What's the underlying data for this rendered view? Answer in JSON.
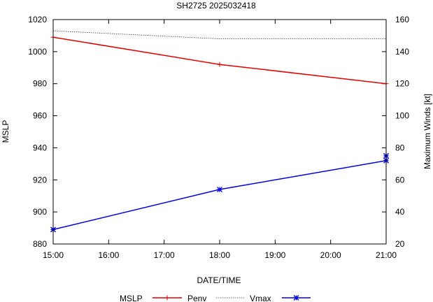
{
  "chart_data": {
    "type": "line",
    "title": "SH2725 2025032418",
    "xlabel": "DATE/TIME",
    "ylabel_left": "MSLP",
    "ylabel_right": "Maximum Winds [kt]",
    "x_categories": [
      "15:00",
      "16:00",
      "17:00",
      "18:00",
      "19:00",
      "20:00",
      "21:00"
    ],
    "xlim": [
      15,
      21
    ],
    "ylim_left": [
      880,
      1020
    ],
    "ylim_right": [
      20,
      160
    ],
    "yticks_left": [
      "880",
      "900",
      "920",
      "940",
      "960",
      "980",
      "1000",
      "1020"
    ],
    "yticks_right": [
      "20",
      "40",
      "60",
      "80",
      "100",
      "120",
      "140",
      "160"
    ],
    "legend_title": "MSLP",
    "series": [
      {
        "name": "Penv",
        "axis": "left",
        "color": "#e00000",
        "marker": "plus",
        "style": "solid",
        "points": [
          [
            15,
            1009
          ],
          [
            18,
            992
          ],
          [
            21,
            980
          ]
        ]
      },
      {
        "name": "Vmax",
        "axis": "right",
        "color": "#0000e0",
        "marker": "star",
        "style": "solid",
        "points": [
          [
            15,
            29
          ],
          [
            18,
            54
          ],
          [
            21,
            72
          ],
          [
            21,
            75
          ]
        ]
      },
      {
        "name": "MSLP",
        "axis": "left",
        "color": "#333333",
        "marker": "none",
        "style": "dotted",
        "points": [
          [
            15,
            1013
          ],
          [
            18,
            1008
          ],
          [
            21,
            1008
          ]
        ]
      }
    ]
  }
}
